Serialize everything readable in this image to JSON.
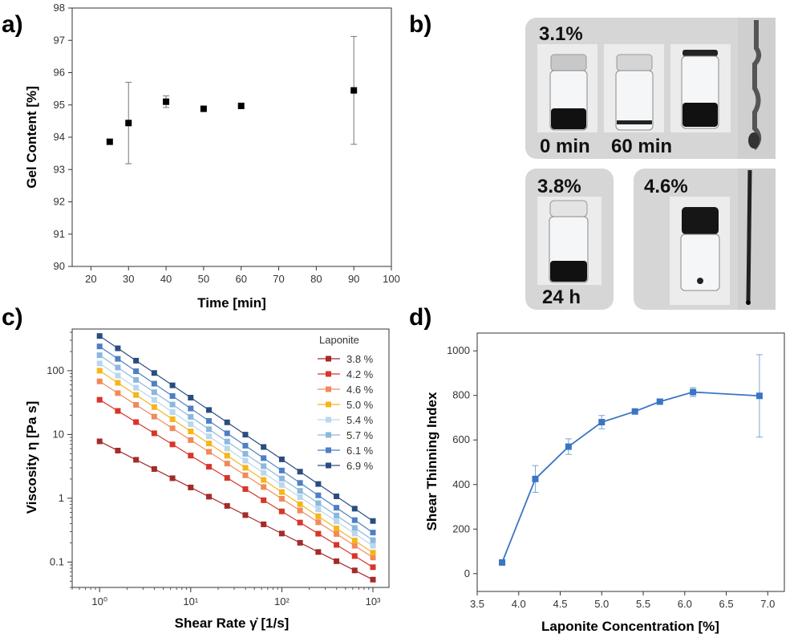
{
  "figure": {
    "panel_labels": [
      "a)",
      "b)",
      "c)",
      "d)"
    ],
    "panel_b": {
      "labels": {
        "conc_31": "3.1%",
        "conc_38": "3.8%",
        "conc_46": "4.6%",
        "time_0": "0 min",
        "time_60": "60 min",
        "time_24h": "24 h"
      }
    }
  },
  "chart_data": [
    {
      "id": "a",
      "type": "scatter",
      "xlabel": "Time [min]",
      "ylabel": "Gel Content [%]",
      "xlim": [
        15,
        100
      ],
      "ylim": [
        90,
        98
      ],
      "xticks": [
        20,
        30,
        40,
        50,
        60,
        70,
        80,
        90,
        100
      ],
      "yticks": [
        90,
        91,
        92,
        93,
        94,
        95,
        96,
        97,
        98
      ],
      "points": [
        {
          "x": 25,
          "y": 93.86,
          "err": 0
        },
        {
          "x": 30,
          "y": 94.44,
          "err": 1.26
        },
        {
          "x": 40,
          "y": 95.1,
          "err": 0.18
        },
        {
          "x": 50,
          "y": 94.88,
          "err": 0
        },
        {
          "x": 60,
          "y": 94.97,
          "err": 0
        },
        {
          "x": 90,
          "y": 95.45,
          "err": 1.67
        }
      ]
    },
    {
      "id": "c",
      "type": "line",
      "xscale": "log",
      "yscale": "log",
      "xlabel": "Shear Rate γ̇ [1/s]",
      "ylabel": "Viscosity η [Pa s]",
      "xlim": [
        0.5,
        1500
      ],
      "ylim": [
        0.04,
        450
      ],
      "xticks": [
        1,
        10,
        100,
        1000
      ],
      "xtick_labels": [
        "10⁰",
        "10¹",
        "10²",
        "10³"
      ],
      "yticks": [
        0.1,
        1,
        10,
        100
      ],
      "ytick_labels": [
        "0.1",
        "1",
        "10",
        "100"
      ],
      "legend_title": "Laponite",
      "legend_position": "top-right",
      "x": [
        1,
        1.585,
        2.512,
        3.981,
        6.31,
        10,
        15.85,
        25.12,
        39.81,
        63.1,
        100,
        158.5,
        251.2,
        398.1,
        631,
        1000
      ],
      "series": [
        {
          "name": "3.8 %",
          "color": "#a52a2a",
          "y1": 7.8,
          "y_end": 0.053
        },
        {
          "name": "4.2 %",
          "color": "#d8352a",
          "y1": 35,
          "y_end": 0.083
        },
        {
          "name": "4.6 %",
          "color": "#f08a5c",
          "y1": 68,
          "y_end": 0.118
        },
        {
          "name": "5.0 %",
          "color": "#f6b51c",
          "y1": 100,
          "y_end": 0.14
        },
        {
          "name": "5.4 %",
          "color": "#b9d7ee",
          "y1": 130,
          "y_end": 0.18
        },
        {
          "name": "5.7 %",
          "color": "#8ab8df",
          "y1": 175,
          "y_end": 0.22
        },
        {
          "name": "6.1 %",
          "color": "#4f7fc4",
          "y1": 240,
          "y_end": 0.29
        },
        {
          "name": "6.9 %",
          "color": "#2a4d7f",
          "y1": 350,
          "y_end": 0.44
        }
      ]
    },
    {
      "id": "d",
      "type": "line",
      "xlabel": "Laponite Concentration [%]",
      "ylabel": "Shear Thinning Index",
      "xlim": [
        3.5,
        7.2
      ],
      "ylim": [
        -80,
        1080
      ],
      "xticks": [
        3.5,
        4.0,
        4.5,
        5.0,
        5.5,
        6.0,
        6.5,
        7.0
      ],
      "xtick_labels": [
        "3.5",
        "4.0",
        "4.5",
        "5.0",
        "5.5",
        "6.0",
        "6.5",
        "7.0"
      ],
      "yticks": [
        0,
        200,
        400,
        600,
        800,
        1000
      ],
      "color": "#3a75c4",
      "points": [
        {
          "x": 3.8,
          "y": 50,
          "err": 0
        },
        {
          "x": 4.2,
          "y": 425,
          "err": 60
        },
        {
          "x": 4.6,
          "y": 570,
          "err": 35
        },
        {
          "x": 5.0,
          "y": 680,
          "err": 30
        },
        {
          "x": 5.4,
          "y": 728,
          "err": 8
        },
        {
          "x": 5.7,
          "y": 772,
          "err": 8
        },
        {
          "x": 6.1,
          "y": 815,
          "err": 20
        },
        {
          "x": 6.9,
          "y": 798,
          "err": 185
        }
      ]
    }
  ]
}
